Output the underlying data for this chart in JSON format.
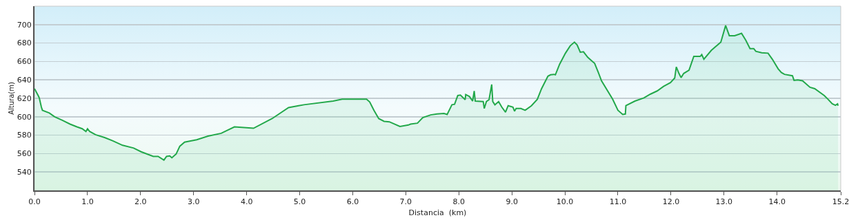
{
  "chart_data": {
    "type": "area",
    "xlabel": "Distancia  (km)",
    "ylabel": "Altura(m)",
    "xlim": [
      0,
      15.2
    ],
    "ylim": [
      520,
      720
    ],
    "xticks": [
      {
        "value": 0,
        "label": "0.0"
      },
      {
        "value": 1,
        "label": "1.0"
      },
      {
        "value": 2,
        "label": "2.0"
      },
      {
        "value": 3,
        "label": "3.0"
      },
      {
        "value": 4,
        "label": "4.0"
      },
      {
        "value": 5,
        "label": "5.0"
      },
      {
        "value": 6,
        "label": "6.0"
      },
      {
        "value": 7,
        "label": "7.0"
      },
      {
        "value": 8,
        "label": "8.0"
      },
      {
        "value": 9,
        "label": "9.0"
      },
      {
        "value": 10,
        "label": "10.0"
      },
      {
        "value": 11,
        "label": "11.0"
      },
      {
        "value": 12,
        "label": "12.0"
      },
      {
        "value": 13,
        "label": "13.0"
      },
      {
        "value": 14,
        "label": "14.0"
      },
      15.2
    ],
    "yticks": [
      540,
      560,
      580,
      600,
      620,
      640,
      660,
      680,
      700
    ],
    "grid": "y",
    "marker": "none",
    "line_style": "solid",
    "series": [
      {
        "color": "#22a84a",
        "x": [
          0,
          0.07,
          0.09,
          0.13,
          0.15,
          0.28,
          0.38,
          0.53,
          0.67,
          0.8,
          0.9,
          0.97,
          1.0,
          1.04,
          1.15,
          1.32,
          1.47,
          1.66,
          1.87,
          2.01,
          2.24,
          2.33,
          2.44,
          2.49,
          2.55,
          2.59,
          2.67,
          2.74,
          2.83,
          3.06,
          3.27,
          3.52,
          3.77,
          4.13,
          4.48,
          4.79,
          4.98,
          5.08,
          5.63,
          5.8,
          6.26,
          6.32,
          6.4,
          6.49,
          6.59,
          6.69,
          6.89,
          7.05,
          7.09,
          7.22,
          7.32,
          7.47,
          7.59,
          7.72,
          7.78,
          7.87,
          7.92,
          7.98,
          8.03,
          8.12,
          8.13,
          8.2,
          8.26,
          8.29,
          8.31,
          8.46,
          8.48,
          8.52,
          8.57,
          8.62,
          8.64,
          8.68,
          8.75,
          8.81,
          8.88,
          8.93,
          9.02,
          9.05,
          9.08,
          9.17,
          9.25,
          9.37,
          9.48,
          9.56,
          9.68,
          9.73,
          9.79,
          9.82,
          9.9,
          10.01,
          10.1,
          10.18,
          10.23,
          10.29,
          10.35,
          10.43,
          10.52,
          10.56,
          10.63,
          10.69,
          10.9,
          11.0,
          11.09,
          11.14,
          11.15,
          11.32,
          11.49,
          11.61,
          11.74,
          11.86,
          11.99,
          12.07,
          12.1,
          12.15,
          12.19,
          12.24,
          12.34,
          12.43,
          12.55,
          12.58,
          12.62,
          12.76,
          12.91,
          12.94,
          13.03,
          13.1,
          13.2,
          13.33,
          13.41,
          13.49,
          13.56,
          13.6,
          13.71,
          13.83,
          13.91,
          14.02,
          14.08,
          14.14,
          14.29,
          14.32,
          14.39,
          14.48,
          14.62,
          14.71,
          14.89,
          14.96,
          15.04,
          15.1,
          15.14,
          15.15
        ],
        "values": [
          630.5,
          623,
          620.5,
          610.5,
          607,
          604,
          600,
          596,
          592,
          589,
          587,
          584,
          587,
          584,
          580.5,
          577.5,
          574,
          569,
          566,
          562,
          557,
          557,
          553,
          557,
          557.5,
          555.5,
          559.5,
          568,
          572.5,
          575,
          579,
          582,
          589,
          587.5,
          598,
          610,
          612,
          613,
          617,
          619,
          619,
          616,
          607,
          598,
          595,
          594.5,
          589.5,
          591,
          592,
          593,
          599,
          602,
          603,
          603.5,
          602.5,
          613,
          613.5,
          623,
          623.5,
          618.5,
          624,
          622,
          617,
          628,
          617,
          616.5,
          609,
          616.5,
          618.5,
          635,
          616.5,
          613,
          616.5,
          610.5,
          605,
          612,
          610.5,
          606,
          609,
          609,
          607,
          612,
          619,
          630.5,
          644,
          645.5,
          646,
          645.5,
          657,
          669,
          677,
          681,
          678,
          670,
          670.5,
          664.5,
          660,
          658,
          648,
          639,
          619,
          607,
          602.5,
          603,
          612,
          617,
          620.5,
          624.5,
          628,
          633,
          637,
          642,
          654,
          647,
          642.5,
          647,
          650.5,
          665.5,
          665.5,
          667.5,
          662.5,
          672,
          679.5,
          681,
          699,
          688,
          688,
          690.5,
          683,
          674,
          674,
          671,
          669.5,
          669,
          662.5,
          652,
          648,
          646,
          644.5,
          639.5,
          640,
          639,
          632,
          630.5,
          623,
          619,
          614,
          612.5,
          614,
          612
        ]
      }
    ]
  }
}
